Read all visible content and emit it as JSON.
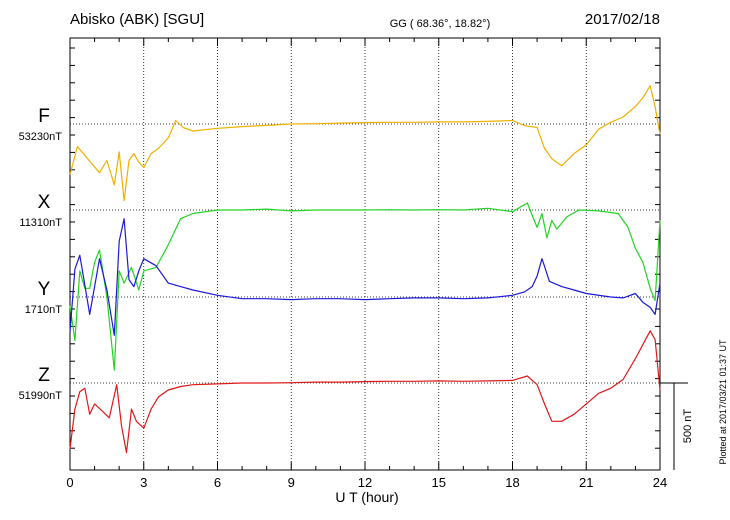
{
  "header": {
    "station": "Abisko (ABK)  [SGU]",
    "coords": "GG ( 68.36°,  18.82°)",
    "date": "2017/02/18"
  },
  "footer": {
    "plotted": "Plotted at 2017/03/21 01:37  UT"
  },
  "chart_data": {
    "type": "line",
    "xlabel": "U T (hour)",
    "xlim": [
      0,
      24
    ],
    "x_ticks": [
      "0",
      "3",
      "6",
      "9",
      "12",
      "15",
      "18",
      "21",
      "24"
    ],
    "scale_bar_label": "500 nT",
    "scale_bar_nT": 500,
    "grid": true,
    "series": [
      {
        "name": "F",
        "baseline_label": "53230nT",
        "color": "#f0b000",
        "x": [
          0,
          0.3,
          0.6,
          0.9,
          1.2,
          1.5,
          1.8,
          2.0,
          2.2,
          2.4,
          2.6,
          2.8,
          3.0,
          3.3,
          3.6,
          4.0,
          4.3,
          4.6,
          5,
          6,
          7,
          8,
          9,
          10,
          11,
          12,
          13,
          14,
          15,
          16,
          17,
          18,
          18.5,
          19,
          19.3,
          19.6,
          20,
          20.5,
          21,
          21.5,
          22,
          22.5,
          23,
          23.3,
          23.6,
          23.8,
          24
        ],
        "y": [
          -290,
          -130,
          -180,
          -230,
          -280,
          -210,
          -350,
          -160,
          -440,
          -210,
          -170,
          -220,
          -250,
          -170,
          -140,
          -80,
          20,
          -20,
          -40,
          -25,
          -15,
          -8,
          0,
          2,
          5,
          8,
          10,
          10,
          12,
          12,
          15,
          20,
          -10,
          -20,
          -140,
          -200,
          -240,
          -170,
          -120,
          -30,
          10,
          40,
          100,
          150,
          220,
          100,
          -60
        ]
      },
      {
        "name": "X",
        "baseline_label": "11310nT",
        "color": "#22d422",
        "x": [
          0,
          0.2,
          0.4,
          0.6,
          0.8,
          1.0,
          1.2,
          1.5,
          1.8,
          2.0,
          2.2,
          2.5,
          2.8,
          3.0,
          3.5,
          4.0,
          4.5,
          5,
          6,
          7,
          8,
          9,
          10,
          11,
          12,
          13,
          14,
          15,
          16,
          17,
          18,
          18.6,
          19.0,
          19.2,
          19.4,
          19.6,
          19.8,
          20.2,
          20.7,
          21.5,
          22.3,
          22.7,
          23.0,
          23.3,
          23.6,
          23.8,
          24
        ],
        "y": [
          -550,
          -750,
          -350,
          -450,
          -450,
          -300,
          -230,
          -500,
          -920,
          -350,
          -420,
          -330,
          -460,
          -350,
          -330,
          -200,
          -50,
          -20,
          0,
          0,
          5,
          -5,
          0,
          0,
          0,
          2,
          0,
          2,
          0,
          10,
          -10,
          40,
          -100,
          -20,
          -160,
          -60,
          -110,
          -40,
          0,
          -5,
          -20,
          -100,
          -220,
          -300,
          -450,
          -520,
          -60
        ]
      },
      {
        "name": "Y",
        "baseline_label": "1710nT",
        "color": "#1a1ad6",
        "x": [
          0,
          0.2,
          0.4,
          0.6,
          0.8,
          1.0,
          1.2,
          1.5,
          1.8,
          2.0,
          2.2,
          2.4,
          2.6,
          2.8,
          3.0,
          3.5,
          4.0,
          4.5,
          5,
          6,
          7,
          8,
          9,
          10,
          11,
          12,
          13,
          14,
          15,
          16,
          17,
          18,
          18.5,
          18.8,
          19.0,
          19.2,
          19.5,
          20,
          20.5,
          21,
          22,
          22.5,
          23.0,
          23.3,
          23.6,
          23.8,
          24
        ],
        "y": [
          -200,
          160,
          240,
          70,
          -100,
          60,
          220,
          40,
          -220,
          320,
          450,
          100,
          60,
          150,
          220,
          180,
          80,
          60,
          40,
          10,
          -10,
          -10,
          -15,
          -10,
          -10,
          -15,
          -10,
          -5,
          -5,
          -10,
          -5,
          10,
          30,
          60,
          120,
          220,
          90,
          60,
          40,
          20,
          0,
          -5,
          20,
          -30,
          -60,
          -100,
          80
        ]
      },
      {
        "name": "Z",
        "baseline_label": "51990nT",
        "color": "#e01818",
        "x": [
          0,
          0.2,
          0.4,
          0.6,
          0.8,
          1.0,
          1.3,
          1.6,
          1.9,
          2.1,
          2.3,
          2.5,
          2.7,
          3.0,
          3.3,
          3.6,
          4.0,
          4.5,
          5,
          6,
          7,
          8,
          9,
          10,
          11,
          12,
          13,
          14,
          15,
          16,
          17,
          18,
          18.6,
          19.0,
          19.3,
          19.6,
          20.0,
          20.5,
          21,
          21.5,
          22,
          22.5,
          23.0,
          23.3,
          23.6,
          23.8,
          24
        ],
        "y": [
          -380,
          -150,
          -50,
          -30,
          -180,
          -120,
          -160,
          -200,
          -10,
          -250,
          -400,
          -150,
          -220,
          -260,
          -150,
          -80,
          -40,
          -20,
          -10,
          -5,
          0,
          0,
          2,
          5,
          5,
          8,
          10,
          10,
          12,
          10,
          12,
          15,
          40,
          -10,
          -120,
          -220,
          -220,
          -180,
          -120,
          -60,
          -30,
          20,
          140,
          220,
          300,
          250,
          -40
        ]
      }
    ]
  }
}
